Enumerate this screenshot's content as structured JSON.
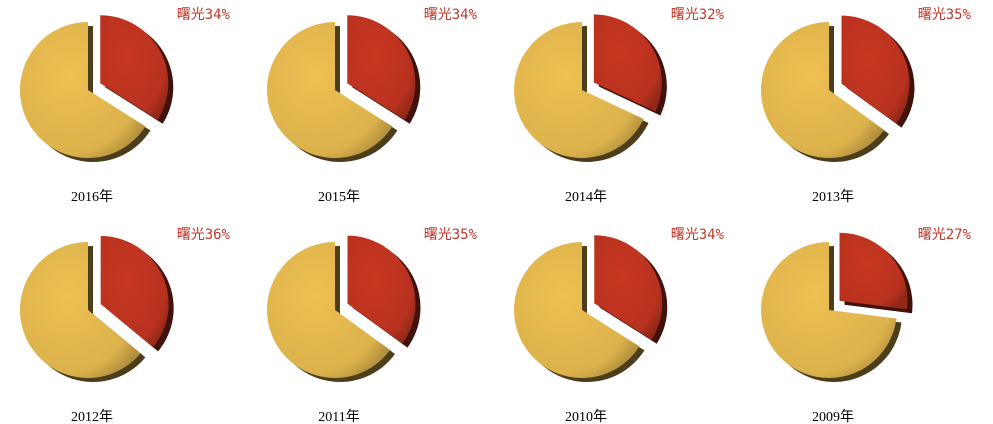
{
  "chart_data": [
    {
      "type": "pie",
      "title": "2016年",
      "categories": [
        "曙光",
        null
      ],
      "values": [
        34,
        66
      ],
      "value_labels": [
        "曙光34%",
        null
      ],
      "colors": [
        "#b8321f",
        "#dcb24c"
      ]
    },
    {
      "type": "pie",
      "title": "2015年",
      "categories": [
        "曙光",
        null
      ],
      "values": [
        34,
        66
      ],
      "value_labels": [
        "曙光34%",
        null
      ],
      "colors": [
        "#b8321f",
        "#dcb24c"
      ]
    },
    {
      "type": "pie",
      "title": "2014年",
      "categories": [
        "曙光",
        null
      ],
      "values": [
        32,
        68
      ],
      "value_labels": [
        "曙光32%",
        null
      ],
      "colors": [
        "#b8321f",
        "#dcb24c"
      ]
    },
    {
      "type": "pie",
      "title": "2013年",
      "categories": [
        "曙光",
        null
      ],
      "values": [
        35,
        65
      ],
      "value_labels": [
        "曙光35%",
        null
      ],
      "colors": [
        "#b8321f",
        "#dcb24c"
      ]
    },
    {
      "type": "pie",
      "title": "2012年",
      "categories": [
        "曙光",
        null
      ],
      "values": [
        36,
        64
      ],
      "value_labels": [
        "曙光36%",
        null
      ],
      "colors": [
        "#b8321f",
        "#dcb24c"
      ]
    },
    {
      "type": "pie",
      "title": "2011年",
      "categories": [
        "曙光",
        null
      ],
      "values": [
        35,
        65
      ],
      "value_labels": [
        "曙光35%",
        null
      ],
      "colors": [
        "#b8321f",
        "#dcb24c"
      ]
    },
    {
      "type": "pie",
      "title": "2010年",
      "categories": [
        "曙光",
        null
      ],
      "values": [
        34,
        66
      ],
      "value_labels": [
        "曙光34%",
        null
      ],
      "colors": [
        "#b8321f",
        "#dcb24c"
      ]
    },
    {
      "type": "pie",
      "title": "2009年",
      "categories": [
        "曙光",
        null
      ],
      "values": [
        27,
        73
      ],
      "value_labels": [
        "曙光27%",
        null
      ],
      "colors": [
        "#b8321f",
        "#dcb24c"
      ]
    }
  ]
}
